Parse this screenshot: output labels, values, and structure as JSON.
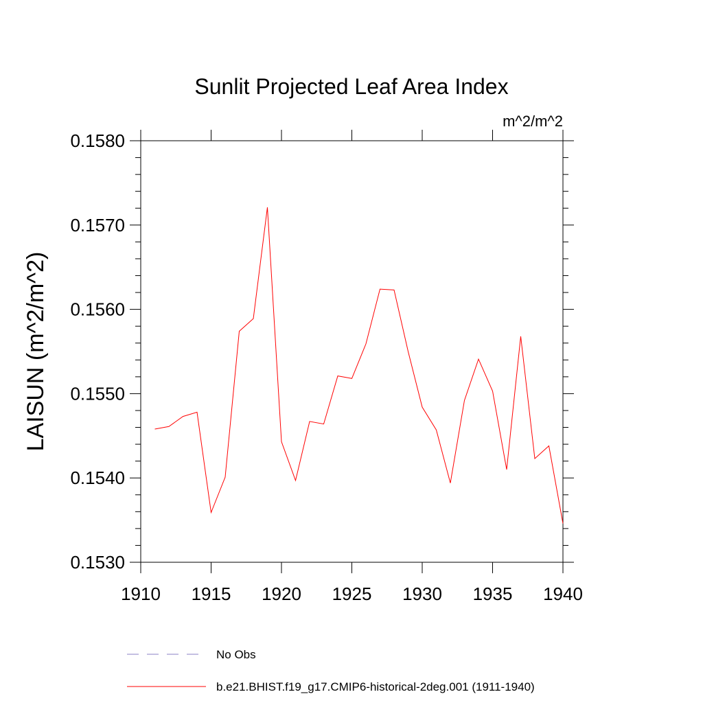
{
  "chart_data": {
    "type": "line",
    "title": "Sunlit Projected Leaf Area Index",
    "units": "m^2/m^2",
    "xlabel": "",
    "ylabel": "LAISUN  (m^2/m^2)",
    "xlim": [
      1910,
      1940
    ],
    "ylim": [
      0.153,
      0.158
    ],
    "x_ticks": [
      1910,
      1915,
      1920,
      1925,
      1930,
      1935,
      1940
    ],
    "x_tick_labels": [
      "1910",
      "1915",
      "1920",
      "1925",
      "1930",
      "1935",
      "1940"
    ],
    "y_ticks": [
      0.153,
      0.154,
      0.155,
      0.156,
      0.157,
      0.158
    ],
    "y_tick_labels": [
      "0.1530",
      "0.1540",
      "0.1550",
      "0.1560",
      "0.1570",
      "0.1580"
    ],
    "grid": false,
    "legend_position": "bottom",
    "legend": [
      {
        "label": "No Obs",
        "color": "#8a7fc4",
        "style": "dashed"
      },
      {
        "label": "b.e21.BHIST.f19_g17.CMIP6-historical-2deg.001 (1911-1940)",
        "color": "#ff0000",
        "style": "solid"
      }
    ],
    "series": [
      {
        "name": "b.e21.BHIST.f19_g17.CMIP6-historical-2deg.001 (1911-1940)",
        "color": "#ff0000",
        "x": [
          1911,
          1912,
          1913,
          1914,
          1915,
          1916,
          1917,
          1918,
          1919,
          1920,
          1921,
          1922,
          1923,
          1924,
          1925,
          1926,
          1927,
          1928,
          1929,
          1930,
          1931,
          1932,
          1933,
          1934,
          1935,
          1936,
          1937,
          1938,
          1939,
          1940
        ],
        "y": [
          0.15458,
          0.15461,
          0.15473,
          0.15478,
          0.15359,
          0.15401,
          0.15574,
          0.15589,
          0.15721,
          0.15443,
          0.15397,
          0.15467,
          0.15464,
          0.15521,
          0.15518,
          0.15559,
          0.15624,
          0.15623,
          0.1555,
          0.15484,
          0.15457,
          0.15394,
          0.15492,
          0.15541,
          0.15503,
          0.1541,
          0.15568,
          0.15423,
          0.15438,
          0.15346
        ]
      }
    ]
  }
}
